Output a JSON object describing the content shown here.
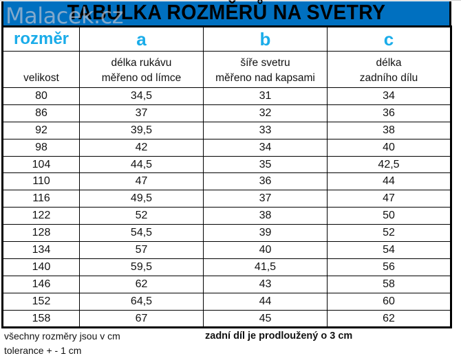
{
  "title": "TABULKA ROZMĚRŮ NA SVETRY",
  "watermark": "Malacek.cz",
  "colors": {
    "title_band": "#0070c0",
    "header_letters": "#1aace9",
    "border": "#000000"
  },
  "table": {
    "header_row": [
      "rozměr",
      "a",
      "b",
      "c"
    ],
    "description_row": [
      {
        "line1": "",
        "line2": "velikost"
      },
      {
        "line1": "délka rukávu",
        "line2": "měřeno od límce"
      },
      {
        "line1": "šíře svetru",
        "line2": "měřeno nad kapsami"
      },
      {
        "line1": "délka",
        "line2": "zadního dílu"
      }
    ],
    "rows": [
      [
        "80",
        "34,5",
        "31",
        "34"
      ],
      [
        "86",
        "37",
        "32",
        "36"
      ],
      [
        "92",
        "39,5",
        "33",
        "38"
      ],
      [
        "98",
        "42",
        "34",
        "40"
      ],
      [
        "104",
        "44,5",
        "35",
        "42,5"
      ],
      [
        "110",
        "47",
        "36",
        "44"
      ],
      [
        "116",
        "49,5",
        "37",
        "47"
      ],
      [
        "122",
        "52",
        "38",
        "50"
      ],
      [
        "128",
        "54,5",
        "39",
        "52"
      ],
      [
        "134",
        "57",
        "40",
        "54"
      ],
      [
        "140",
        "59,5",
        "41,5",
        "56"
      ],
      [
        "146",
        "62",
        "43",
        "58"
      ],
      [
        "152",
        "64,5",
        "44",
        "60"
      ],
      [
        "158",
        "67",
        "45",
        "62"
      ]
    ]
  },
  "footer": {
    "note_units": "všechny rozměry jsou v cm",
    "note_tolerance": "tolerance + - 1 cm",
    "note_back": "zadní díl je prodloužený o 3 cm"
  }
}
